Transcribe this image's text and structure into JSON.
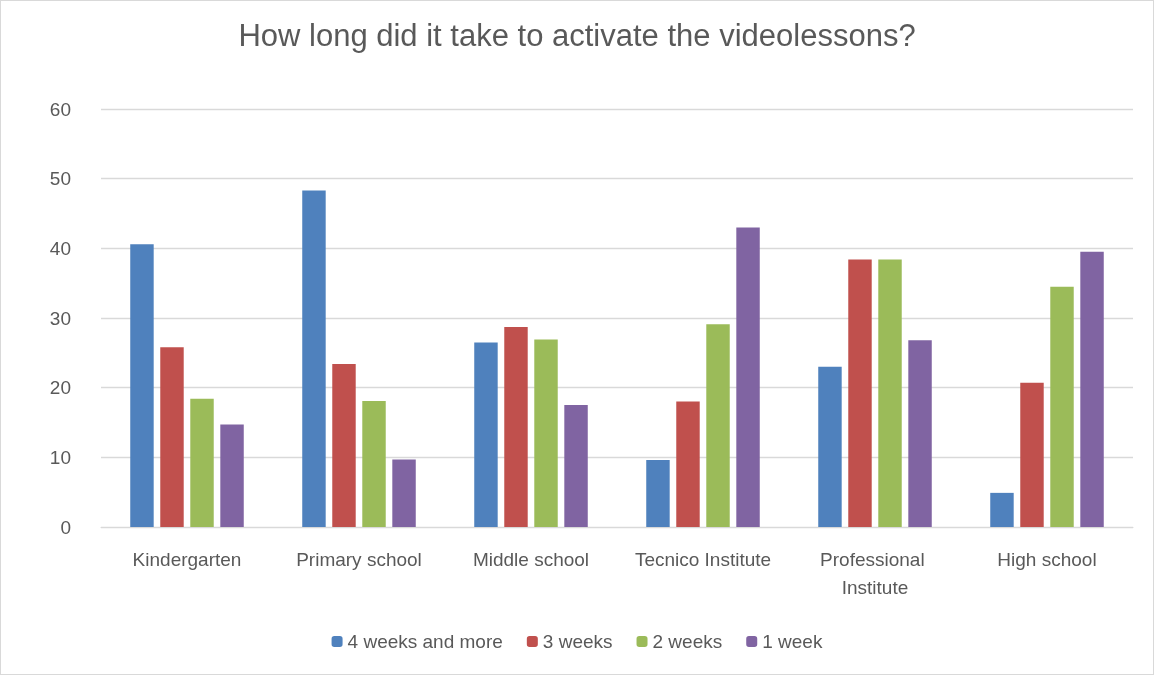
{
  "chart_data": {
    "type": "bar",
    "title": "How long did it take to activate the videolessons?",
    "categories": [
      "Kindergarten",
      "Primary school",
      "Middle school",
      "Tecnico Institute",
      "Professional Institute",
      "High school"
    ],
    "series": [
      {
        "name": "4 weeks and more",
        "color": "#4f81bd",
        "values": [
          40.6,
          48.3,
          26.5,
          9.6,
          23.0,
          4.9
        ]
      },
      {
        "name": "3 weeks",
        "color": "#c0504d",
        "values": [
          25.8,
          23.4,
          28.7,
          18.0,
          38.4,
          20.7
        ]
      },
      {
        "name": "2 weeks",
        "color": "#9bbb59",
        "values": [
          18.4,
          18.1,
          26.9,
          29.1,
          38.4,
          34.5
        ]
      },
      {
        "name": "1 week",
        "color": "#8064a2",
        "values": [
          14.7,
          9.7,
          17.5,
          43.0,
          26.8,
          39.5
        ]
      }
    ],
    "ylim": [
      0,
      60
    ],
    "yticks": [
      0,
      10,
      20,
      30,
      40,
      50,
      60
    ],
    "grid": "y",
    "legend": "bottom"
  }
}
